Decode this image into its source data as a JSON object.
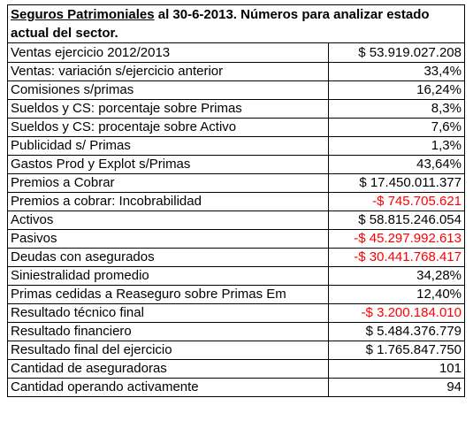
{
  "title": {
    "part1": "Seguros Patrimoniales",
    "part2": " al 30-6-2013. Números para analizar estado actual del sector."
  },
  "rows": [
    {
      "label": "Ventas ejercicio 2012/2013",
      "value": "$ 53.919.027.208",
      "negative": false
    },
    {
      "label": "Ventas: variación s/ejercicio anterior",
      "value": "33,4%",
      "negative": false
    },
    {
      "label": "Comisiones s/primas",
      "value": "16,24%",
      "negative": false
    },
    {
      "label": "Sueldos y CS: porcentaje sobre Primas",
      "value": "8,3%",
      "negative": false
    },
    {
      "label": "Sueldos y CS: procentaje sobre Activo",
      "value": "7,6%",
      "negative": false
    },
    {
      "label": "Publicidad s/ Primas",
      "value": "1,3%",
      "negative": false
    },
    {
      "label": "Gastos Prod y Explot s/Primas",
      "value": "43,64%",
      "negative": false
    },
    {
      "label": "Premios a Cobrar",
      "value": "$ 17.450.011.377",
      "negative": false
    },
    {
      "label": "Premios a cobrar: Incobrabilidad",
      "value": "-$ 745.705.621",
      "negative": true
    },
    {
      "label": "Activos",
      "value": "$ 58.815.246.054",
      "negative": false
    },
    {
      "label": "Pasivos",
      "value": "-$ 45.297.992.613",
      "negative": true
    },
    {
      "label": "Deudas con asegurados",
      "value": "-$ 30.441.768.417",
      "negative": true
    },
    {
      "label": "Siniestralidad promedio",
      "value": "34,28%",
      "negative": false
    },
    {
      "label": "Primas cedidas a Reaseguro sobre Primas Em",
      "value": "12,40%",
      "negative": false
    },
    {
      "label": "Resultado técnico final",
      "value": "-$ 3.200.184.010",
      "negative": true
    },
    {
      "label": "Resultado financiero",
      "value": "$ 5.484.376.779",
      "negative": false
    },
    {
      "label": "Resultado final del ejercicio",
      "value": "$ 1.765.847.750",
      "negative": false
    },
    {
      "label": "Cantidad de aseguradoras",
      "value": "101",
      "negative": false
    },
    {
      "label": "Cantidad operando activamente",
      "value": "94",
      "negative": false
    }
  ],
  "colors": {
    "negative": "#ff0000",
    "text": "#000000",
    "border": "#000000"
  }
}
